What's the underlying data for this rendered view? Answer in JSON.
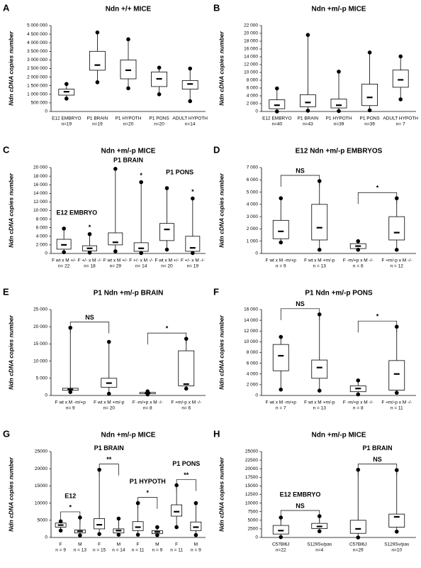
{
  "chart_data": [
    {
      "type": "box",
      "panel": "A",
      "title": "Ndn +/+ MICE",
      "ylabel": "Ndn cDNA copies number",
      "ylim": [
        0,
        5000000
      ],
      "yticks": [
        0,
        {
          "value": 500000,
          "label": "500 000"
        },
        {
          "value": 1000000,
          "label": "1 000 000"
        },
        {
          "value": 1500000,
          "label": "1 500 000"
        },
        {
          "value": 2000000,
          "label": "2 000 000"
        },
        {
          "value": 2500000,
          "label": "2 500 000"
        },
        {
          "value": 3000000,
          "label": "3 000 000"
        },
        {
          "value": 3500000,
          "label": "3 500 000"
        },
        {
          "value": 4000000,
          "label": "4 000 000"
        },
        {
          "value": 4500000,
          "label": "4 500 000"
        },
        {
          "value": 5000000,
          "label": "5 000 000"
        }
      ],
      "categories": [
        "E12 EMBRYO",
        "P1 BRAIN",
        "P1 HYPOTH",
        "P1 PONS",
        "ADULT HYPOTH"
      ],
      "n_labels": [
        "n=19",
        "n=19",
        "n=20",
        "n=20",
        "n=14"
      ],
      "boxes": [
        {
          "min": 750000,
          "q1": 950000,
          "median": 1150000,
          "q3": 1300000,
          "max": 1600000
        },
        {
          "min": 1700000,
          "q1": 2400000,
          "median": 2700000,
          "q3": 3500000,
          "max": 4600000
        },
        {
          "min": 1350000,
          "q1": 1900000,
          "median": 2400000,
          "q3": 3000000,
          "max": 4200000
        },
        {
          "min": 1000000,
          "q1": 1450000,
          "median": 1900000,
          "q3": 2300000,
          "max": 2550000
        },
        {
          "min": 600000,
          "q1": 1300000,
          "median": 1600000,
          "q3": 1800000,
          "max": 2500000
        }
      ]
    },
    {
      "type": "box",
      "panel": "B",
      "title": "Ndn +m/-p MICE",
      "ylabel": "Ndn cDNA copies number",
      "ylim": [
        0,
        22000
      ],
      "yticks": [
        0,
        {
          "value": 2000,
          "label": "2 000"
        },
        {
          "value": 4000,
          "label": "4 000"
        },
        {
          "value": 6000,
          "label": "6 000"
        },
        {
          "value": 8000,
          "label": "8 000"
        },
        {
          "value": 10000,
          "label": "10 000"
        },
        {
          "value": 12000,
          "label": "12 000"
        },
        {
          "value": 14000,
          "label": "14 000"
        },
        {
          "value": 16000,
          "label": "16 000"
        },
        {
          "value": 18000,
          "label": "18 000"
        },
        {
          "value": 20000,
          "label": "20 000"
        },
        {
          "value": 22000,
          "label": "22 000"
        }
      ],
      "categories": [
        "E12 EMBRYO",
        "P1 BRAIN",
        "P1 HYPOTH",
        "P1 PONS",
        "ADULT HYPOTH"
      ],
      "n_labels": [
        "n=40",
        "n=43",
        "n=39",
        "n=39",
        "n= 7"
      ],
      "boxes": [
        {
          "min": 0,
          "q1": 700,
          "median": 1600,
          "q3": 3000,
          "max": 5900
        },
        {
          "min": 200,
          "q1": 1200,
          "median": 2300,
          "q3": 4300,
          "max": 19600
        },
        {
          "min": 100,
          "q1": 900,
          "median": 1600,
          "q3": 3200,
          "max": 10200
        },
        {
          "min": 300,
          "q1": 1500,
          "median": 3600,
          "q3": 7000,
          "max": 15100
        },
        {
          "min": 3100,
          "q1": 6200,
          "median": 8100,
          "q3": 10600,
          "max": 14100
        }
      ]
    },
    {
      "type": "box",
      "panel": "C",
      "title": "Ndn +m/-p MICE",
      "ylabel": "Ndn cDNA copies number",
      "ylim": [
        0,
        20000
      ],
      "yticks": [
        0,
        {
          "value": 2000,
          "label": "2 000"
        },
        {
          "value": 4000,
          "label": "4 000"
        },
        {
          "value": 6000,
          "label": "6 000"
        },
        {
          "value": 8000,
          "label": "8 000"
        },
        {
          "value": 10000,
          "label": "10 000"
        },
        {
          "value": 12000,
          "label": "12 000"
        },
        {
          "value": 14000,
          "label": "14 000"
        },
        {
          "value": 16000,
          "label": "16 000"
        },
        {
          "value": 18000,
          "label": "18 000"
        },
        {
          "value": 20000,
          "label": "20 000"
        }
      ],
      "categories": [
        "F wt x M +/-",
        "F +/- x M -/-",
        "F wt x M +/-",
        "F +/- x M -/-",
        "F wt x M +/-",
        "F +/- x M -/-"
      ],
      "n_labels": [
        "n= 22",
        "n= 18",
        "n= 29",
        "n= 14",
        "n= 20",
        "n= 19"
      ],
      "boxes": [
        {
          "min": 300,
          "q1": 1000,
          "median": 2000,
          "q3": 3300,
          "max": 5800
        },
        {
          "min": 200,
          "q1": 600,
          "median": 1200,
          "q3": 1800,
          "max": 4500
        },
        {
          "min": 500,
          "q1": 2000,
          "median": 2600,
          "q3": 4800,
          "max": 19700
        },
        {
          "min": 100,
          "q1": 500,
          "median": 1200,
          "q3": 2500,
          "max": 16600
        },
        {
          "min": 900,
          "q1": 3000,
          "median": 5600,
          "q3": 7000,
          "max": 15200
        },
        {
          "min": 100,
          "q1": 500,
          "median": 1300,
          "q3": 4000,
          "max": 12800
        }
      ],
      "groups": [
        {
          "label": "E12 EMBRYO",
          "categories": [
            0,
            1
          ]
        },
        {
          "label": "P1 BRAIN",
          "categories": [
            2,
            3
          ]
        },
        {
          "label": "P1 PONS",
          "categories": [
            4,
            5
          ]
        }
      ],
      "markers": [
        {
          "category": 1,
          "label": "*"
        },
        {
          "category": 3,
          "label": "*"
        },
        {
          "category": 5,
          "label": "*"
        }
      ]
    },
    {
      "type": "box",
      "panel": "D",
      "title": "E12 Ndn +m/-p EMBRYOS",
      "ylabel": "Ndn cDNA copies number",
      "ylim": [
        0,
        7000
      ],
      "yticks": [
        0,
        {
          "value": 1000,
          "label": "1 000"
        },
        {
          "value": 2000,
          "label": "2 000"
        },
        {
          "value": 3000,
          "label": "3 000"
        },
        {
          "value": 4000,
          "label": "4 000"
        },
        {
          "value": 5000,
          "label": "5 000"
        },
        {
          "value": 6000,
          "label": "6 000"
        },
        {
          "value": 7000,
          "label": "7 000"
        }
      ],
      "categories": [
        "F wt x M -m/+p",
        "F wt x M +m/-p",
        "F -m/+p x M -/-",
        "F +m/-p x M -/-"
      ],
      "n_labels": [
        "n = 9",
        "n = 13",
        "n = 6",
        "n = 12"
      ],
      "boxes": [
        {
          "min": 900,
          "q1": 1200,
          "median": 1800,
          "q3": 2700,
          "max": 4500
        },
        {
          "min": 300,
          "q1": 1100,
          "median": 2100,
          "q3": 4000,
          "max": 5900
        },
        {
          "min": 300,
          "q1": 400,
          "median": 600,
          "q3": 800,
          "max": 1000
        },
        {
          "min": 300,
          "q1": 1100,
          "median": 1700,
          "q3": 3000,
          "max": 4500
        }
      ],
      "comparisons": [
        {
          "categories": [
            0,
            1
          ],
          "label": "NS"
        },
        {
          "categories": [
            2,
            3
          ],
          "label": "*"
        }
      ]
    },
    {
      "type": "box",
      "panel": "E",
      "title": "P1 Ndn +m/-p BRAIN",
      "ylabel": "Ndn cDNA copies number",
      "ylim": [
        0,
        25000
      ],
      "yticks": [
        0,
        {
          "value": 5000,
          "label": "5 000"
        },
        {
          "value": 10000,
          "label": "10 000"
        },
        {
          "value": 15000,
          "label": "15 000"
        },
        {
          "value": 20000,
          "label": "20 000"
        },
        {
          "value": 25000,
          "label": "25 000"
        }
      ],
      "categories": [
        "F wt x M -m/+p",
        "F wt x M +m/-p",
        "F -m/+p x M -/-",
        "F +m/-p x M -/-"
      ],
      "n_labels": [
        "n= 9",
        "n= 20",
        "n= 8",
        "n= 6"
      ],
      "boxes": [
        {
          "min": 1000,
          "q1": 1500,
          "median": 1800,
          "q3": 2100,
          "max": 19700
        },
        {
          "min": 500,
          "q1": 2400,
          "median": 3600,
          "q3": 5000,
          "max": 15600
        },
        {
          "min": 300,
          "q1": 500,
          "median": 700,
          "q3": 900,
          "max": 1200
        },
        {
          "min": 2000,
          "q1": 2800,
          "median": 3300,
          "q3": 13000,
          "max": 16500
        }
      ],
      "comparisons": [
        {
          "categories": [
            0,
            1
          ],
          "label": "NS"
        },
        {
          "categories": [
            2,
            3
          ],
          "label": "*"
        }
      ]
    },
    {
      "type": "box",
      "panel": "F",
      "title": "P1 Ndn +m/-p PONS",
      "ylabel": "Ndn cDNA copies number",
      "ylim": [
        0,
        16000
      ],
      "yticks": [
        0,
        {
          "value": 2000,
          "label": "2 000"
        },
        {
          "value": 4000,
          "label": "4 000"
        },
        {
          "value": 6000,
          "label": "6 000"
        },
        {
          "value": 8000,
          "label": "8 000"
        },
        {
          "value": 10000,
          "label": "10 000"
        },
        {
          "value": 12000,
          "label": "12 000"
        },
        {
          "value": 14000,
          "label": "14 000"
        },
        {
          "value": 16000,
          "label": "16 000"
        }
      ],
      "categories": [
        "F wt x M -m/+p",
        "F wt x M +m/-p",
        "F -m/+p x M -/-",
        "F +m/-p x M -/-"
      ],
      "n_labels": [
        "n = 7",
        "n = 13",
        "n = 8",
        "n = 11"
      ],
      "boxes": [
        {
          "min": 1100,
          "q1": 4600,
          "median": 7400,
          "q3": 9500,
          "max": 10900
        },
        {
          "min": 900,
          "q1": 3200,
          "median": 5200,
          "q3": 6600,
          "max": 15100
        },
        {
          "min": 200,
          "q1": 700,
          "median": 1300,
          "q3": 1800,
          "max": 2800
        },
        {
          "min": 500,
          "q1": 1000,
          "median": 4000,
          "q3": 6500,
          "max": 12800
        }
      ],
      "comparisons": [
        {
          "categories": [
            0,
            1
          ],
          "label": "NS"
        },
        {
          "categories": [
            2,
            3
          ],
          "label": "*"
        }
      ]
    },
    {
      "type": "box",
      "panel": "G",
      "title": "Ndn +m/-p MICE",
      "ylabel": "Ndn cDNA copies number",
      "ylim": [
        0,
        25000
      ],
      "yticks": [
        0,
        5000,
        10000,
        15000,
        20000,
        25000
      ],
      "categories": [
        "F",
        "M",
        "F",
        "M",
        "F",
        "M",
        "F",
        "M"
      ],
      "n_labels": [
        "n = 9",
        "n = 13",
        "n = 15",
        "n = 14",
        "n = 11",
        "n = 9",
        "n = 11",
        "n = 9"
      ],
      "boxes": [
        {
          "min": 2000,
          "q1": 3000,
          "median": 3600,
          "q3": 4200,
          "max": 4700
        },
        {
          "min": 600,
          "q1": 1300,
          "median": 1800,
          "q3": 2200,
          "max": 5800
        },
        {
          "min": 1000,
          "q1": 2500,
          "median": 3700,
          "q3": 5500,
          "max": 19700
        },
        {
          "min": 800,
          "q1": 1300,
          "median": 2000,
          "q3": 2500,
          "max": 5500
        },
        {
          "min": 800,
          "q1": 2000,
          "median": 3000,
          "q3": 4600,
          "max": 10000
        },
        {
          "min": 700,
          "q1": 1100,
          "median": 1600,
          "q3": 2000,
          "max": 3000
        },
        {
          "min": 3000,
          "q1": 6200,
          "median": 7500,
          "q3": 9500,
          "max": 15200
        },
        {
          "min": 700,
          "q1": 2000,
          "median": 3000,
          "q3": 4500,
          "max": 10000
        }
      ],
      "groups": [
        {
          "label": "E12",
          "categories": [
            0,
            1
          ]
        },
        {
          "label": "P1 BRAIN",
          "categories": [
            2,
            3
          ]
        },
        {
          "label": "P1 HYPOTH",
          "categories": [
            4,
            5
          ]
        },
        {
          "label": "P1 PONS",
          "categories": [
            6,
            7
          ]
        }
      ],
      "comparisons": [
        {
          "categories": [
            0,
            1
          ],
          "label": "*"
        },
        {
          "categories": [
            2,
            3
          ],
          "label": "**"
        },
        {
          "categories": [
            4,
            5
          ],
          "label": "*"
        },
        {
          "categories": [
            6,
            7
          ],
          "label": "**"
        }
      ]
    },
    {
      "type": "box",
      "panel": "H",
      "title": "Ndn +m/-p MICE",
      "ylabel": "Ndn cDNA copies number",
      "ylim": [
        0,
        25000
      ],
      "yticks": [
        0,
        2500,
        5000,
        7500,
        10000,
        12500,
        15000,
        17500,
        20000,
        22500,
        25000
      ],
      "categories": [
        "C57Bl6J",
        "S129Sv/pas",
        "C57Bl6J",
        "S129Sv/pas"
      ],
      "n_labels": [
        "n=22",
        "n=4",
        "n=29",
        "n=10"
      ],
      "boxes": [
        {
          "min": 100,
          "q1": 1000,
          "median": 2000,
          "q3": 3500,
          "max": 5800
        },
        {
          "min": 1800,
          "q1": 2600,
          "median": 3200,
          "q3": 4100,
          "max": 6200
        },
        {
          "min": 0,
          "q1": 1200,
          "median": 2500,
          "q3": 5000,
          "max": 19700
        },
        {
          "min": 1700,
          "q1": 3000,
          "median": 6000,
          "q3": 6800,
          "max": 19600
        }
      ],
      "groups": [
        {
          "label": "E12 EMBRYO",
          "categories": [
            0,
            1
          ]
        },
        {
          "label": "P1 BRAIN",
          "categories": [
            2,
            3
          ]
        }
      ],
      "comparisons": [
        {
          "categories": [
            0,
            1
          ],
          "label": "NS"
        },
        {
          "categories": [
            2,
            3
          ],
          "label": "NS"
        }
      ]
    }
  ]
}
